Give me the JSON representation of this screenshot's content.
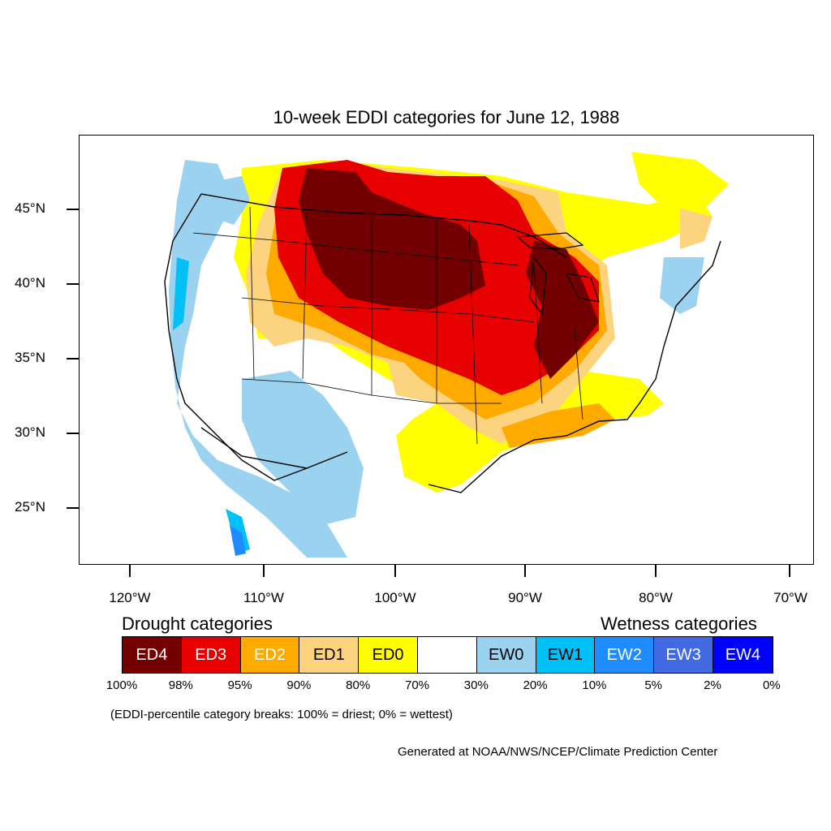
{
  "title": "10-week EDDI categories for June 12, 1988",
  "map": {
    "lat_ticks": [
      "45°N",
      "40°N",
      "35°N",
      "30°N",
      "25°N"
    ],
    "lon_ticks": [
      "120°W",
      "110°W",
      "100°W",
      "90°W",
      "80°W",
      "70°W"
    ]
  },
  "legend": {
    "drought_heading": "Drought categories",
    "wetness_heading": "Wetness categories",
    "categories": [
      {
        "label": "ED4",
        "color": "#730000"
      },
      {
        "label": "ED3",
        "color": "#e60000"
      },
      {
        "label": "ED2",
        "color": "#ffaa00"
      },
      {
        "label": "ED1",
        "color": "#fcd37f"
      },
      {
        "label": "ED0",
        "color": "#ffff00"
      },
      {
        "label": "",
        "color": "#ffffff"
      },
      {
        "label": "EW0",
        "color": "#9ad2f0"
      },
      {
        "label": "EW1",
        "color": "#00c0f5"
      },
      {
        "label": "EW2",
        "color": "#1e8cff"
      },
      {
        "label": "EW3",
        "color": "#4169e1"
      },
      {
        "label": "EW4",
        "color": "#0000ff"
      }
    ],
    "percentiles": [
      "100%",
      "98%",
      "95%",
      "90%",
      "80%",
      "70%",
      "30%",
      "20%",
      "10%",
      "5%",
      "2%",
      "0%"
    ],
    "note": "(EDDI-percentile category breaks: 100% = driest; 0% = wettest)"
  },
  "credit": "Generated at NOAA/NWS/NCEP/Climate Prediction Center"
}
